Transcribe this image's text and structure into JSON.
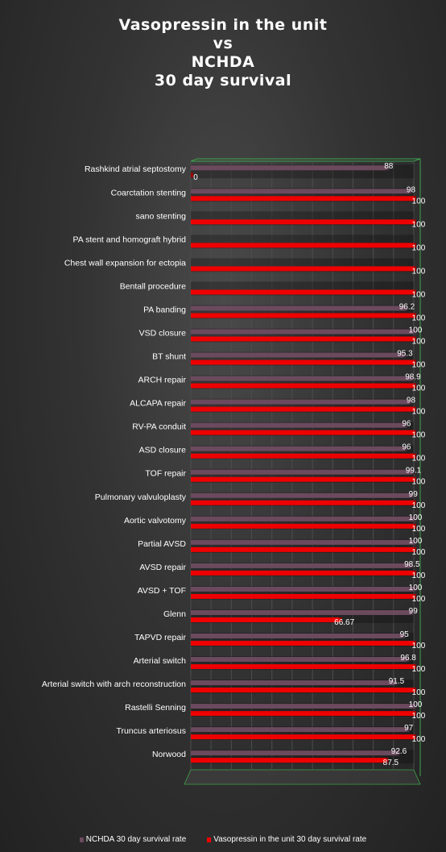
{
  "chart_data": {
    "type": "bar",
    "orientation": "horizontal",
    "title_lines": [
      "Vasopressin  in the unit",
      "vs",
      "NCHDA",
      "30 day survival"
    ],
    "categories": [
      "Rashkind atrial septostomy",
      "Coarctation stenting",
      "sano stenting",
      "PA stent and homograft hybrid",
      "Chest wall expansion for ectopia",
      "Bentall procedure",
      "PA banding",
      "VSD closure",
      "BT shunt",
      "ARCH repair",
      "ALCAPA repair",
      "RV-PA conduit",
      "ASD closure",
      "TOF repair",
      "Pulmonary valvuloplasty",
      "Aortic valvotomy",
      "Partial AVSD",
      "AVSD repair",
      "AVSD + TOF",
      "Glenn",
      "TAPVD repair",
      "Arterial switch",
      "Arterial switch with arch reconstruction",
      "Rastelli Senning",
      "Truncus arteriosus",
      "Norwood"
    ],
    "series": [
      {
        "name": "NCHDA 30 day survival rate",
        "color": "#6b4a5e",
        "values": [
          88,
          98,
          null,
          null,
          null,
          null,
          96.2,
          100,
          95.3,
          98.9,
          98,
          96,
          96,
          99.1,
          99,
          100,
          100,
          98.5,
          100,
          99,
          95,
          96.8,
          91.5,
          100,
          97,
          92.6
        ],
        "labels": [
          "88",
          "98",
          "",
          "",
          "",
          "",
          "96.2",
          "100",
          "95.3",
          "98.9",
          "98",
          "96",
          "96",
          "99.1",
          "99",
          "100",
          "100",
          "98.5",
          "100",
          "99",
          "95",
          "96.8",
          "91.5",
          "100",
          "97",
          "92.6"
        ]
      },
      {
        "name": "Vasopressin in the unit 30 day survival rate",
        "color": "#ee0000",
        "values": [
          0,
          100,
          100,
          100,
          100,
          100,
          100,
          100,
          100,
          100,
          100,
          100,
          100,
          100,
          100,
          100,
          100,
          100,
          100,
          66.67,
          100,
          100,
          100,
          100,
          100,
          87.5
        ],
        "labels": [
          "0",
          "100",
          "100",
          "100",
          "100",
          "100",
          "100",
          "100",
          "100",
          "100",
          "100",
          "100",
          "100",
          "100",
          "100",
          "100",
          "100",
          "100",
          "100",
          "66.67",
          "100",
          "100",
          "100",
          "100",
          "100",
          "87.5"
        ]
      }
    ],
    "xlim": [
      0,
      100
    ],
    "grid": true,
    "legend_position": "bottom"
  }
}
